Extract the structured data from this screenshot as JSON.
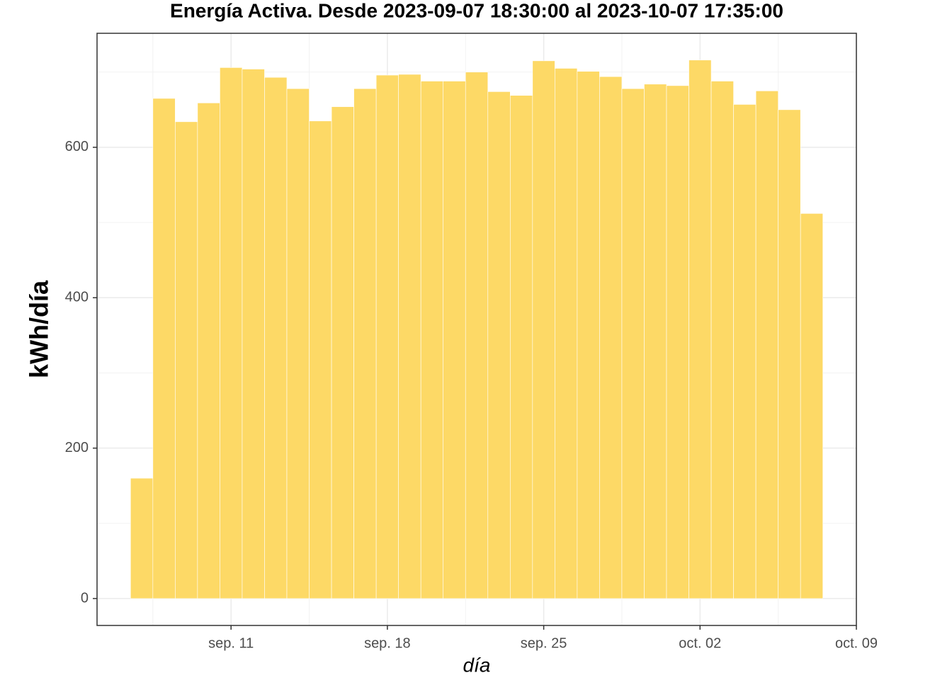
{
  "chart_data": {
    "type": "bar",
    "title": "Energía Activa. Desde  2023-09-07 18:30:00  al  2023-10-07 17:35:00",
    "x_label": "día",
    "y_label": "kWh/día",
    "x": [
      "2023-09-07",
      "2023-09-08",
      "2023-09-09",
      "2023-09-10",
      "2023-09-11",
      "2023-09-12",
      "2023-09-13",
      "2023-09-14",
      "2023-09-15",
      "2023-09-16",
      "2023-09-17",
      "2023-09-18",
      "2023-09-19",
      "2023-09-20",
      "2023-09-21",
      "2023-09-22",
      "2023-09-23",
      "2023-09-24",
      "2023-09-25",
      "2023-09-26",
      "2023-09-27",
      "2023-09-28",
      "2023-09-29",
      "2023-09-30",
      "2023-10-01",
      "2023-10-02",
      "2023-10-03",
      "2023-10-04",
      "2023-10-05",
      "2023-10-06",
      "2023-10-07"
    ],
    "values": [
      160,
      665,
      634,
      659,
      706,
      704,
      693,
      678,
      635,
      654,
      678,
      696,
      697,
      688,
      688,
      700,
      674,
      669,
      715,
      705,
      701,
      694,
      678,
      684,
      682,
      716,
      688,
      657,
      675,
      650,
      512
    ],
    "color": "#fdd966",
    "xlim": [
      "2023-09-05",
      "2023-10-09"
    ],
    "xticks": [
      {
        "value": "2023-09-11",
        "label": "sep. 11"
      },
      {
        "value": "2023-09-18",
        "label": "sep. 18"
      },
      {
        "value": "2023-09-25",
        "label": "sep. 25"
      },
      {
        "value": "2023-10-02",
        "label": "oct. 02"
      },
      {
        "value": "2023-10-09",
        "label": "oct. 09"
      }
    ],
    "x_minor_ticks": [
      "2023-09-07 12:00",
      "2023-09-14 12:00",
      "2023-09-21 12:00",
      "2023-09-28 12:00",
      "2023-10-05 12:00"
    ],
    "ylim": [
      -35.8,
      751.6
    ],
    "yticks": [
      0,
      200,
      400,
      600
    ],
    "y_minor_ticks": [
      100,
      300,
      500,
      700
    ],
    "grid": true
  }
}
